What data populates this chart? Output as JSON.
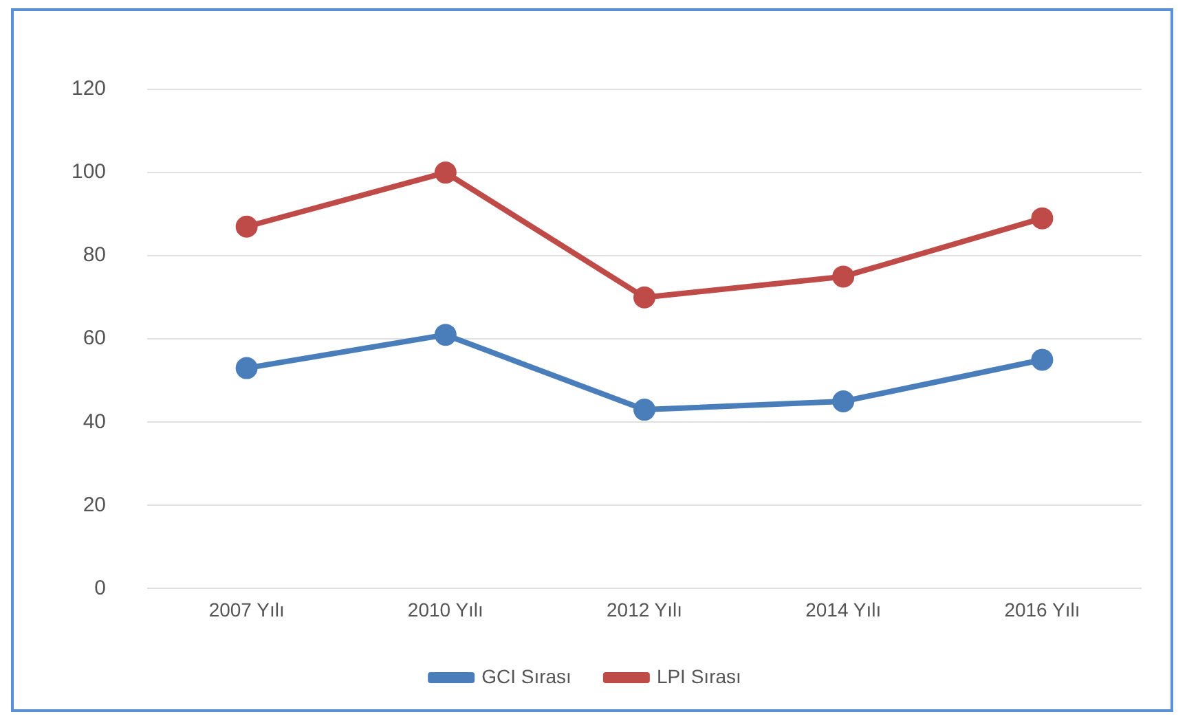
{
  "chart_data": {
    "type": "line",
    "categories": [
      "2007 Yılı",
      "2010 Yılı",
      "2012 Yılı",
      "2014 Yılı",
      "2016 Yılı"
    ],
    "series": [
      {
        "name": "GCI Sırası",
        "color": "#4a7ebb",
        "values": [
          53,
          61,
          43,
          45,
          55
        ]
      },
      {
        "name": "LPI Sırası",
        "color": "#be4b48",
        "values": [
          87,
          100,
          70,
          75,
          89
        ]
      }
    ],
    "ylim": [
      0,
      120
    ],
    "yticks": [
      0,
      20,
      40,
      60,
      80,
      100,
      120
    ],
    "grid": "y",
    "legend": "bottom",
    "marker": "circle",
    "line_style": "solid"
  }
}
